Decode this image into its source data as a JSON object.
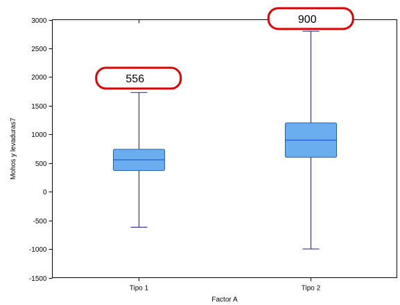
{
  "chart_data": {
    "type": "boxplot",
    "xlabel": "Factor A",
    "ylabel": "Mohos y levaduras7",
    "ylim": [
      -1500,
      3000
    ],
    "yticks": [
      3000,
      2500,
      2000,
      1500,
      1000,
      500,
      0,
      -500,
      -1000,
      -1500
    ],
    "grid": false,
    "categories": [
      "Tipo 1",
      "Tipo 2"
    ],
    "boxes": [
      {
        "category": "Tipo 1",
        "min": -620,
        "q1": 370,
        "median": 556,
        "q3": 740,
        "max": 1730
      },
      {
        "category": "Tipo 2",
        "min": -1000,
        "q1": 600,
        "median": 900,
        "q3": 1200,
        "max": 2800
      }
    ],
    "annotations": [
      {
        "category": "Tipo 1",
        "text": "556",
        "y": 1980
      },
      {
        "category": "Tipo 2",
        "text": "900",
        "y": 3020
      }
    ],
    "colors": {
      "box_fill": "#6aaef0",
      "box_edge": "#1e5fb8",
      "whisker": "#1a1a8c",
      "median": "#1f4fd0",
      "callout_border": "#e00000",
      "axis": "#000000"
    }
  }
}
